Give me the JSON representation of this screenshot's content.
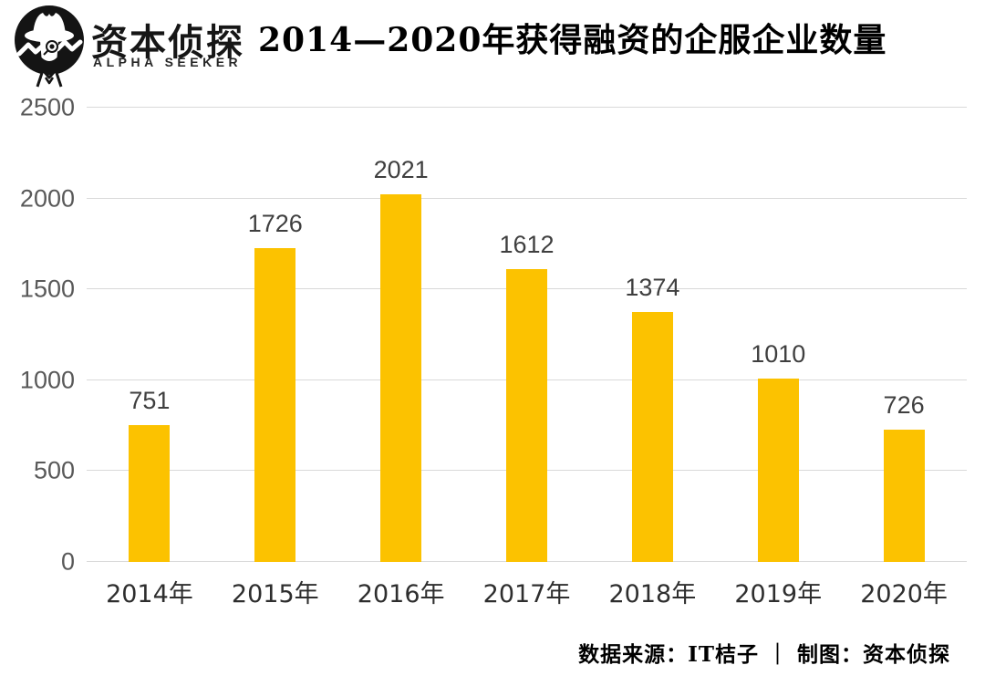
{
  "header": {
    "brand_zh": "资本侦探",
    "brand_en": "ALPHA SEEKER",
    "title": "2014—2020年获得融资的企服企业数量"
  },
  "chart_data": {
    "type": "bar",
    "title": "2014—2020年获得融资的企服企业数量",
    "categories": [
      "2014年",
      "2015年",
      "2016年",
      "2017年",
      "2018年",
      "2019年",
      "2020年"
    ],
    "values": [
      751,
      1726,
      2021,
      1612,
      1374,
      1010,
      726
    ],
    "xlabel": "",
    "ylabel": "",
    "ylim": [
      0,
      2500
    ],
    "yticks": [
      0,
      500,
      1000,
      1500,
      2000,
      2500
    ],
    "grid": true,
    "legend_position": "none",
    "bar_color": "#fcc200"
  },
  "footer": {
    "source": "数据来源：IT桔子 ｜ 制图：资本侦探"
  },
  "colors": {
    "bar": "#fcc200",
    "gridline": "#d9d9d9",
    "ytick_label": "#595959",
    "value_label": "#3f3f3f",
    "title_text": "#000000"
  }
}
